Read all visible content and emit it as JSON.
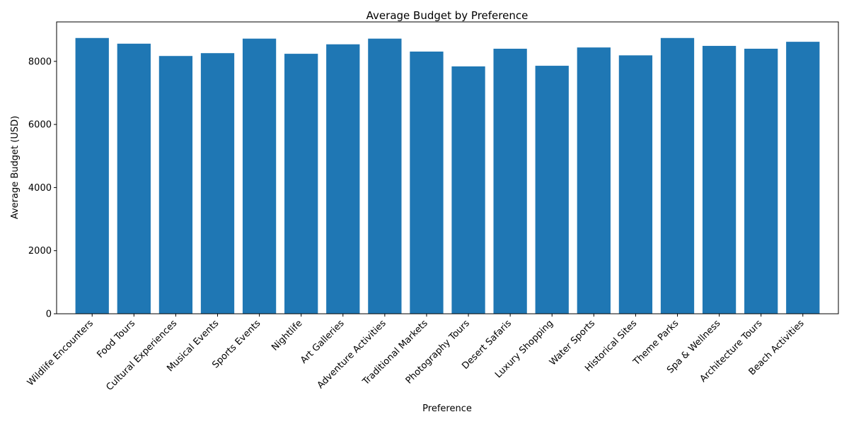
{
  "chart_data": {
    "type": "bar",
    "title": "Average Budget by Preference",
    "xlabel": "Preference",
    "ylabel": "Average Budget (USD)",
    "ylim": [
      0,
      9250
    ],
    "yticks": [
      0,
      2000,
      4000,
      6000,
      8000
    ],
    "grid": false,
    "bar_color": "#1f77b4",
    "categories": [
      "Wildlife Encounters",
      "Food Tours",
      "Cultural Experiences",
      "Musical Events",
      "Sports Events",
      "Nightlife",
      "Art Galleries",
      "Adventure Activities",
      "Traditional Markets",
      "Photography Tours",
      "Desert Safaris",
      "Luxury Shopping",
      "Water Sports",
      "Historical Sites",
      "Theme Parks",
      "Spa & Wellness",
      "Architecture Tours",
      "Beach Activities"
    ],
    "values": [
      8740,
      8560,
      8170,
      8260,
      8720,
      8240,
      8540,
      8720,
      8310,
      7840,
      8400,
      7860,
      8440,
      8190,
      8740,
      8490,
      8400,
      8620
    ]
  }
}
